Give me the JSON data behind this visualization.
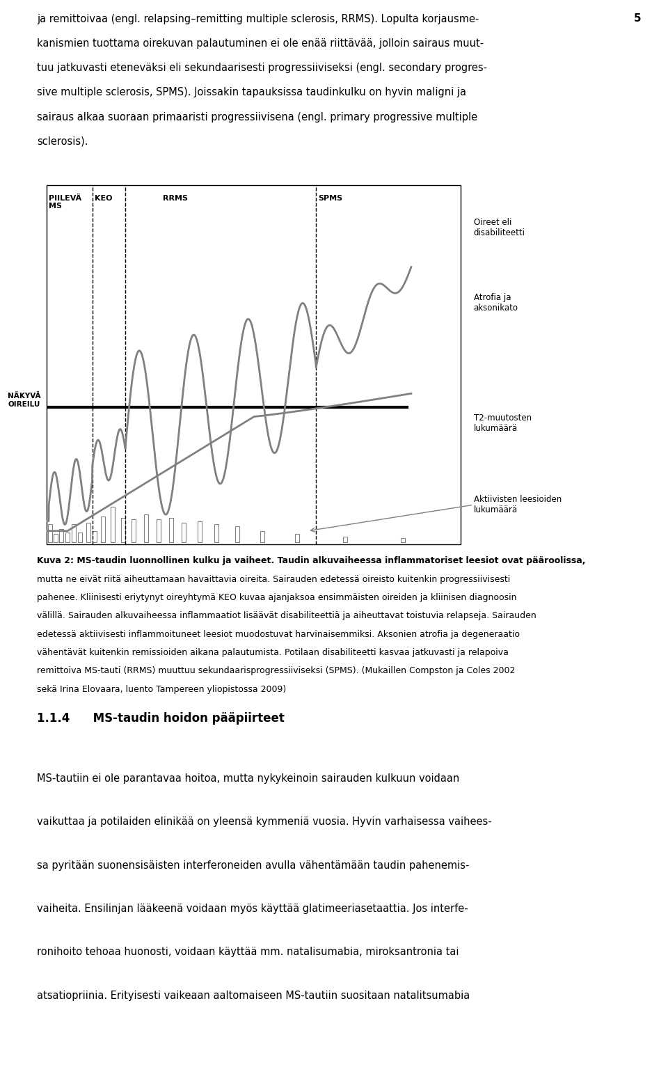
{
  "page_number": "5",
  "top_text_lines": [
    "ja remittoivaa (engl. relapsing–remitting multiple sclerosis, RRMS). Lopulta korjausme-",
    "kanismien tuottama oirekuvan palautuminen ei ole enää riittävää, jolloin sairaus muut-",
    "tuu jatkuvasti eteneväksi eli sekundaarisesti progressiiviseksi (engl. secondary progres-",
    "sive multiple sclerosis, SPMS). Joissakin tapauksissa taudinkulku on hyvin maligni ja",
    "sairaus alkaa suoraan primaaristi progressiivisena (engl. primary progressive multiple",
    "sclerosis)."
  ],
  "label_piilevä_ms": "PIILEVÄ\nMS",
  "label_keo": "KEO",
  "label_rrms": "RRMS",
  "label_spms": "SPMS",
  "label_oireet": "Oireet eli\ndisabiliteetti",
  "label_atrofia": "Atrofia ja\naksonikato",
  "label_t2": "T2-muutosten\nlukumäärä",
  "label_aktiivisten": "Aktiivisten leesioiden\nlukumäärä",
  "label_nakyvä": "NÄKYVÄ\nOIREILU",
  "caption_bold": "Kuva 2: MS-taudin luonnollinen kulku ja vaiheet.",
  "caption_lines": [
    "Kuva 2: MS-taudin luonnollinen kulku ja vaiheet. Taudin alkuvaiheessa inflammatoriset leesiot ovat pääroolissa,",
    "mutta ne eivät riitä aiheuttamaan havaittavia oireita. Sairauden edetessä oireisto kuitenkin progressiivisesti",
    "pahenee. Kliinisesti eriytynyt oireyhtymä KEO kuvaa ajanjaksoa ensimmäisten oireiden ja kliinisen diagnoosin",
    "välillä. Sairauden alkuvaiheessa inflammaatiot lisäävät disabiliteettiä ja aiheuttavat toistuvia relapseja. Sairauden",
    "edetessä aktiivisesti inflammoituneet leesiot muodostuvat harvinaisemmiksi. Aksonien atrofia ja degeneraatio",
    "vähentävät kuitenkin remissioiden aikana palautumista. Potilaan disabiliteetti kasvaa jatkuvasti ja relapoiva",
    "remittoiva MS-tauti (RRMS) muuttuu sekundaarisprogressiiviseksi (SPMS). (Mukaillen Compston ja Coles 2002",
    "sekä Irina Elovaara, luento Tampereen yliopistossa 2009)"
  ],
  "section_title": "1.1.4  MS-taudin hoidon pääpiirteet",
  "bottom_text_lines": [
    "MS-tautiin ei ole parantavaa hoitoa, mutta nykykeinoin sairauden kulkuun voidaan",
    "vaikuttaa ja potilaiden elinikää on yleensä kymmeniä vuosia. Hyvin varhaisessa vaihees-",
    "sa pyritään suonensisäisten interferoneiden avulla vähentämään taudin pahenemis-",
    "vaiheita. Ensilinjan lääkeenä voidaan myös käyttää glatimeeriasetaattia. Jos interfe-",
    "ronihoito tehoaa huonosti, voidaan käyttää mm. natalisumabia, miroksantronia tai",
    "atsatiopriinia. Erityisesti vaikeaan aaltomaiseen MS-tautiin suositaan natalitsumabia"
  ],
  "line_color": "#808080",
  "background_color": "#ffffff"
}
